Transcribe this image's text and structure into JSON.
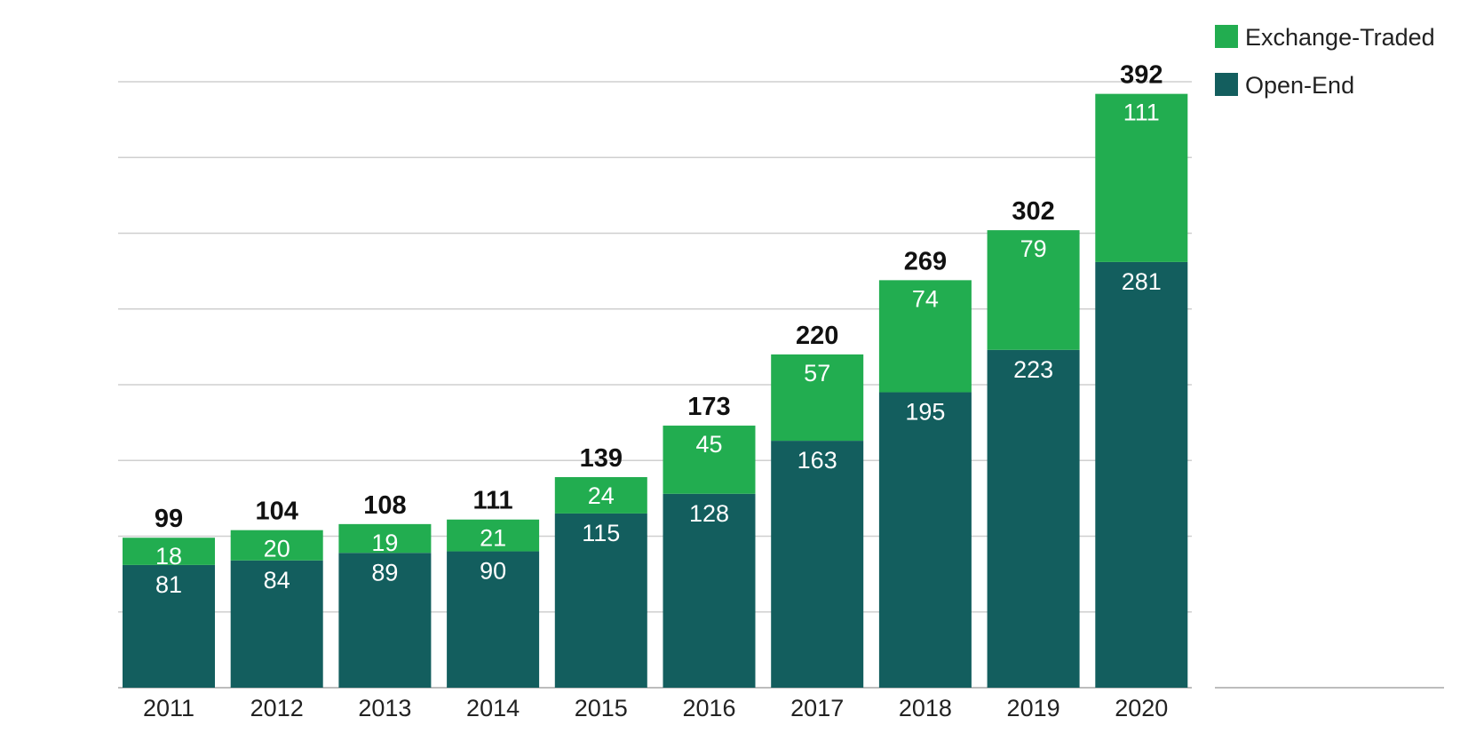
{
  "chart_data": {
    "type": "bar",
    "stacked": true,
    "categories": [
      "2011",
      "2012",
      "2013",
      "2014",
      "2015",
      "2016",
      "2017",
      "2018",
      "2019",
      "2020"
    ],
    "series": [
      {
        "name": "Open-End",
        "values": [
          81,
          84,
          89,
          90,
          115,
          128,
          163,
          195,
          223,
          281
        ],
        "color": "#135e5e"
      },
      {
        "name": "Exchange-Traded",
        "values": [
          18,
          20,
          19,
          21,
          24,
          45,
          57,
          74,
          79,
          111
        ],
        "color": "#22ad50"
      }
    ],
    "totals": [
      99,
      104,
      108,
      111,
      139,
      173,
      220,
      269,
      302,
      392
    ],
    "ylim": [
      0,
      400
    ],
    "grid": true,
    "legend": "top-right",
    "title": "",
    "xlabel": "",
    "ylabel": ""
  }
}
